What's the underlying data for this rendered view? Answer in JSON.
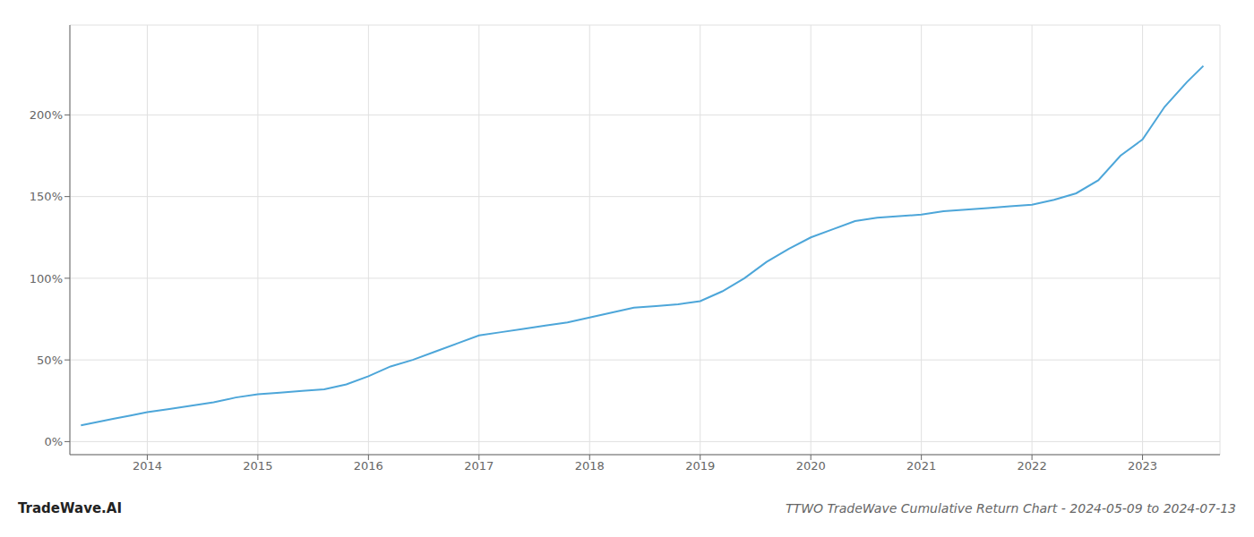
{
  "chart_data": {
    "type": "line",
    "title": "TTWO TradeWave Cumulative Return Chart - 2024-05-09 to 2024-07-13",
    "annotations": [
      "TradeWave.AI"
    ],
    "x": [
      2013.4,
      2013.55,
      2013.7,
      2013.85,
      2014.0,
      2014.2,
      2014.4,
      2014.6,
      2014.8,
      2015.0,
      2015.2,
      2015.4,
      2015.6,
      2015.8,
      2016.0,
      2016.2,
      2016.4,
      2016.6,
      2016.8,
      2017.0,
      2017.2,
      2017.4,
      2017.6,
      2017.8,
      2018.0,
      2018.2,
      2018.4,
      2018.6,
      2018.8,
      2019.0,
      2019.2,
      2019.4,
      2019.6,
      2019.8,
      2020.0,
      2020.2,
      2020.4,
      2020.6,
      2020.8,
      2021.0,
      2021.2,
      2021.4,
      2021.6,
      2021.8,
      2022.0,
      2022.2,
      2022.4,
      2022.6,
      2022.8,
      2023.0,
      2023.2,
      2023.4,
      2023.55
    ],
    "values": [
      10,
      12,
      14,
      16,
      18,
      20,
      22,
      24,
      27,
      29,
      30,
      31,
      32,
      35,
      40,
      46,
      50,
      55,
      60,
      65,
      67,
      69,
      71,
      73,
      76,
      79,
      82,
      83,
      84,
      86,
      92,
      100,
      110,
      118,
      125,
      130,
      135,
      137,
      138,
      139,
      141,
      142,
      143,
      144,
      145,
      148,
      152,
      160,
      175,
      185,
      205,
      220,
      230
    ],
    "color": "#4da6d9",
    "xlim": [
      2013.3,
      2023.7
    ],
    "xticks": [
      2014,
      2015,
      2016,
      2017,
      2018,
      2019,
      2020,
      2021,
      2022,
      2023
    ],
    "ylim": [
      -8,
      255
    ],
    "yticks": [
      {
        "value": 0,
        "label": "0%"
      },
      {
        "value": 50,
        "label": "50%"
      },
      {
        "value": 100,
        "label": "100%"
      },
      {
        "value": 150,
        "label": "150%"
      },
      {
        "value": 200,
        "label": "200%"
      }
    ],
    "grid": true
  }
}
